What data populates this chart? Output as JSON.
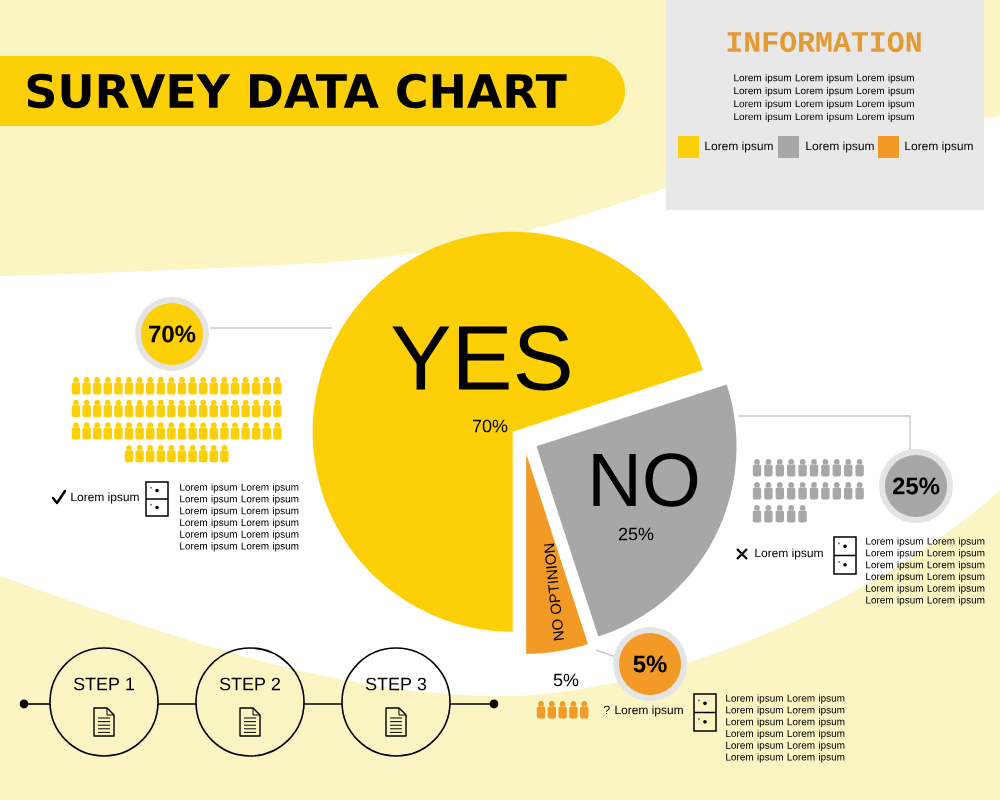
{
  "chart_data": {
    "type": "pie",
    "title": "SURVEY DATA CHART",
    "categories": [
      "YES",
      "NO",
      "NO OPTINION"
    ],
    "values": [
      70,
      25,
      5
    ],
    "colors": [
      "#fccf06",
      "#a7a7a7",
      "#f39a26"
    ],
    "value_labels": [
      "70%",
      "25%",
      "5%"
    ],
    "annotations": [
      "INFORMATION",
      "Lorem ipsum Lorem ipsum Lorem ipsum Lorem ipsum Lorem ipsum Lorem ipsum Lorem ipsum Lorem ipsum Lorem ipsum Lorem ipsum Lorem ipsum Lorem ipsum",
      "Lorem ipsum",
      "Lorem ipsum",
      "Lorem ipsum",
      "70%",
      "Lorem ipsum",
      "Lorem ipsum Lorem ipsum Lorem ipsum Lorem ipsum Lorem ipsum Lorem ipsum Lorem ipsum Lorem ipsum Lorem ipsum Lorem ipsum Lorem ipsum Lorem ipsum",
      "25%",
      "Lorem ipsum",
      "Lorem ipsum Lorem ipsum Lorem ipsum Lorem ipsum Lorem ipsum Lorem ipsum Lorem ipsum Lorem ipsum Lorem ipsum Lorem ipsum Lorem ipsum Lorem ipsum",
      "5%",
      "? Lorem ipsum",
      "Lorem ipsum Lorem ipsum Lorem ipsum Lorem ipsum Lorem ipsum Lorem ipsum Lorem ipsum Lorem ipsum Lorem ipsum Lorem ipsum Lorem ipsum Lorem ipsum",
      "STEP 1",
      "STEP 2",
      "STEP 3"
    ]
  }
}
